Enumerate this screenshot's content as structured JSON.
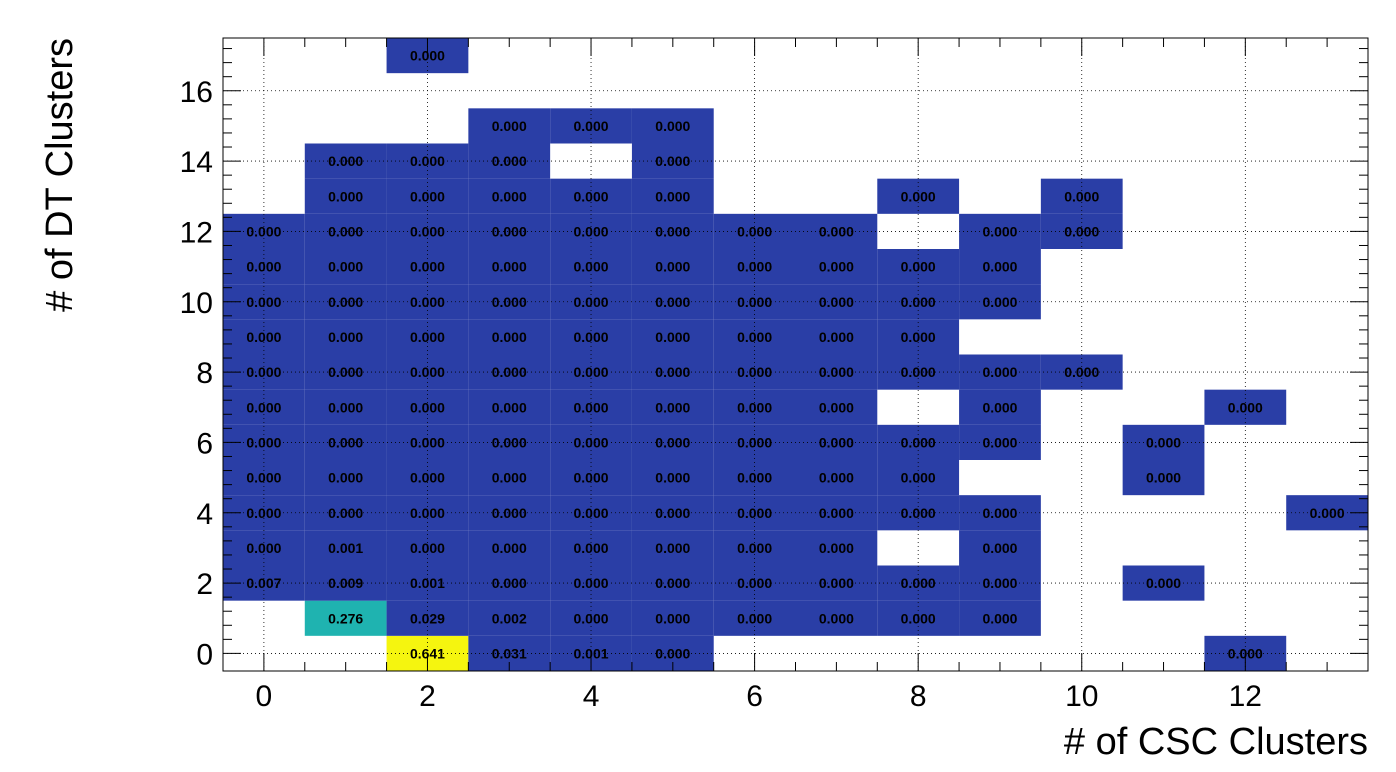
{
  "chart_data": {
    "type": "heatmap",
    "title": "",
    "xlabel": "# of CSC Clusters",
    "ylabel": "# of DT Clusters",
    "xlim": [
      -0.5,
      13.5
    ],
    "ylim": [
      -0.5,
      17.5
    ],
    "x_ticks": [
      "0",
      "2",
      "4",
      "6",
      "8",
      "10",
      "12"
    ],
    "y_ticks": [
      "0",
      "2",
      "4",
      "6",
      "8",
      "10",
      "12",
      "14",
      "16"
    ],
    "grid": true,
    "colors": {
      "low": "#2a3ea6",
      "mid": "#1fb3b0",
      "high": "#f5f50f"
    },
    "cells": [
      {
        "x": 2,
        "y": 0,
        "label": "0.641",
        "value": 0.641
      },
      {
        "x": 3,
        "y": 0,
        "label": "0.031",
        "value": 0.031
      },
      {
        "x": 4,
        "y": 0,
        "label": "0.001",
        "value": 0.001
      },
      {
        "x": 5,
        "y": 0,
        "label": "0.000",
        "value": 0.0
      },
      {
        "x": 12,
        "y": 0,
        "label": "0.000",
        "value": 0.0
      },
      {
        "x": 1,
        "y": 1,
        "label": "0.276",
        "value": 0.276
      },
      {
        "x": 2,
        "y": 1,
        "label": "0.029",
        "value": 0.029
      },
      {
        "x": 3,
        "y": 1,
        "label": "0.002",
        "value": 0.002
      },
      {
        "x": 4,
        "y": 1,
        "label": "0.000",
        "value": 0.0
      },
      {
        "x": 5,
        "y": 1,
        "label": "0.000",
        "value": 0.0
      },
      {
        "x": 6,
        "y": 1,
        "label": "0.000",
        "value": 0.0
      },
      {
        "x": 7,
        "y": 1,
        "label": "0.000",
        "value": 0.0
      },
      {
        "x": 8,
        "y": 1,
        "label": "0.000",
        "value": 0.0
      },
      {
        "x": 9,
        "y": 1,
        "label": "0.000",
        "value": 0.0
      },
      {
        "x": 0,
        "y": 2,
        "label": "0.007",
        "value": 0.007
      },
      {
        "x": 1,
        "y": 2,
        "label": "0.009",
        "value": 0.009
      },
      {
        "x": 2,
        "y": 2,
        "label": "0.001",
        "value": 0.001
      },
      {
        "x": 3,
        "y": 2,
        "label": "0.000",
        "value": 0.0
      },
      {
        "x": 4,
        "y": 2,
        "label": "0.000",
        "value": 0.0
      },
      {
        "x": 5,
        "y": 2,
        "label": "0.000",
        "value": 0.0
      },
      {
        "x": 6,
        "y": 2,
        "label": "0.000",
        "value": 0.0
      },
      {
        "x": 7,
        "y": 2,
        "label": "0.000",
        "value": 0.0
      },
      {
        "x": 8,
        "y": 2,
        "label": "0.000",
        "value": 0.0
      },
      {
        "x": 9,
        "y": 2,
        "label": "0.000",
        "value": 0.0
      },
      {
        "x": 11,
        "y": 2,
        "label": "0.000",
        "value": 0.0
      },
      {
        "x": 0,
        "y": 3,
        "label": "0.000",
        "value": 0.0
      },
      {
        "x": 1,
        "y": 3,
        "label": "0.001",
        "value": 0.001
      },
      {
        "x": 2,
        "y": 3,
        "label": "0.000",
        "value": 0.0
      },
      {
        "x": 3,
        "y": 3,
        "label": "0.000",
        "value": 0.0
      },
      {
        "x": 4,
        "y": 3,
        "label": "0.000",
        "value": 0.0
      },
      {
        "x": 5,
        "y": 3,
        "label": "0.000",
        "value": 0.0
      },
      {
        "x": 6,
        "y": 3,
        "label": "0.000",
        "value": 0.0
      },
      {
        "x": 7,
        "y": 3,
        "label": "0.000",
        "value": 0.0
      },
      {
        "x": 9,
        "y": 3,
        "label": "0.000",
        "value": 0.0
      },
      {
        "x": 0,
        "y": 4,
        "label": "0.000",
        "value": 0.0
      },
      {
        "x": 1,
        "y": 4,
        "label": "0.000",
        "value": 0.0
      },
      {
        "x": 2,
        "y": 4,
        "label": "0.000",
        "value": 0.0
      },
      {
        "x": 3,
        "y": 4,
        "label": "0.000",
        "value": 0.0
      },
      {
        "x": 4,
        "y": 4,
        "label": "0.000",
        "value": 0.0
      },
      {
        "x": 5,
        "y": 4,
        "label": "0.000",
        "value": 0.0
      },
      {
        "x": 6,
        "y": 4,
        "label": "0.000",
        "value": 0.0
      },
      {
        "x": 7,
        "y": 4,
        "label": "0.000",
        "value": 0.0
      },
      {
        "x": 8,
        "y": 4,
        "label": "0.000",
        "value": 0.0
      },
      {
        "x": 9,
        "y": 4,
        "label": "0.000",
        "value": 0.0
      },
      {
        "x": 13,
        "y": 4,
        "label": "0.000",
        "value": 0.0
      },
      {
        "x": 0,
        "y": 5,
        "label": "0.000",
        "value": 0.0
      },
      {
        "x": 1,
        "y": 5,
        "label": "0.000",
        "value": 0.0
      },
      {
        "x": 2,
        "y": 5,
        "label": "0.000",
        "value": 0.0
      },
      {
        "x": 3,
        "y": 5,
        "label": "0.000",
        "value": 0.0
      },
      {
        "x": 4,
        "y": 5,
        "label": "0.000",
        "value": 0.0
      },
      {
        "x": 5,
        "y": 5,
        "label": "0.000",
        "value": 0.0
      },
      {
        "x": 6,
        "y": 5,
        "label": "0.000",
        "value": 0.0
      },
      {
        "x": 7,
        "y": 5,
        "label": "0.000",
        "value": 0.0
      },
      {
        "x": 8,
        "y": 5,
        "label": "0.000",
        "value": 0.0
      },
      {
        "x": 11,
        "y": 5,
        "label": "0.000",
        "value": 0.0
      },
      {
        "x": 0,
        "y": 6,
        "label": "0.000",
        "value": 0.0
      },
      {
        "x": 1,
        "y": 6,
        "label": "0.000",
        "value": 0.0
      },
      {
        "x": 2,
        "y": 6,
        "label": "0.000",
        "value": 0.0
      },
      {
        "x": 3,
        "y": 6,
        "label": "0.000",
        "value": 0.0
      },
      {
        "x": 4,
        "y": 6,
        "label": "0.000",
        "value": 0.0
      },
      {
        "x": 5,
        "y": 6,
        "label": "0.000",
        "value": 0.0
      },
      {
        "x": 6,
        "y": 6,
        "label": "0.000",
        "value": 0.0
      },
      {
        "x": 7,
        "y": 6,
        "label": "0.000",
        "value": 0.0
      },
      {
        "x": 8,
        "y": 6,
        "label": "0.000",
        "value": 0.0
      },
      {
        "x": 9,
        "y": 6,
        "label": "0.000",
        "value": 0.0
      },
      {
        "x": 11,
        "y": 6,
        "label": "0.000",
        "value": 0.0
      },
      {
        "x": 0,
        "y": 7,
        "label": "0.000",
        "value": 0.0
      },
      {
        "x": 1,
        "y": 7,
        "label": "0.000",
        "value": 0.0
      },
      {
        "x": 2,
        "y": 7,
        "label": "0.000",
        "value": 0.0
      },
      {
        "x": 3,
        "y": 7,
        "label": "0.000",
        "value": 0.0
      },
      {
        "x": 4,
        "y": 7,
        "label": "0.000",
        "value": 0.0
      },
      {
        "x": 5,
        "y": 7,
        "label": "0.000",
        "value": 0.0
      },
      {
        "x": 6,
        "y": 7,
        "label": "0.000",
        "value": 0.0
      },
      {
        "x": 7,
        "y": 7,
        "label": "0.000",
        "value": 0.0
      },
      {
        "x": 9,
        "y": 7,
        "label": "0.000",
        "value": 0.0
      },
      {
        "x": 12,
        "y": 7,
        "label": "0.000",
        "value": 0.0
      },
      {
        "x": 0,
        "y": 8,
        "label": "0.000",
        "value": 0.0
      },
      {
        "x": 1,
        "y": 8,
        "label": "0.000",
        "value": 0.0
      },
      {
        "x": 2,
        "y": 8,
        "label": "0.000",
        "value": 0.0
      },
      {
        "x": 3,
        "y": 8,
        "label": "0.000",
        "value": 0.0
      },
      {
        "x": 4,
        "y": 8,
        "label": "0.000",
        "value": 0.0
      },
      {
        "x": 5,
        "y": 8,
        "label": "0.000",
        "value": 0.0
      },
      {
        "x": 6,
        "y": 8,
        "label": "0.000",
        "value": 0.0
      },
      {
        "x": 7,
        "y": 8,
        "label": "0.000",
        "value": 0.0
      },
      {
        "x": 8,
        "y": 8,
        "label": "0.000",
        "value": 0.0
      },
      {
        "x": 9,
        "y": 8,
        "label": "0.000",
        "value": 0.0
      },
      {
        "x": 10,
        "y": 8,
        "label": "0.000",
        "value": 0.0
      },
      {
        "x": 0,
        "y": 9,
        "label": "0.000",
        "value": 0.0
      },
      {
        "x": 1,
        "y": 9,
        "label": "0.000",
        "value": 0.0
      },
      {
        "x": 2,
        "y": 9,
        "label": "0.000",
        "value": 0.0
      },
      {
        "x": 3,
        "y": 9,
        "label": "0.000",
        "value": 0.0
      },
      {
        "x": 4,
        "y": 9,
        "label": "0.000",
        "value": 0.0
      },
      {
        "x": 5,
        "y": 9,
        "label": "0.000",
        "value": 0.0
      },
      {
        "x": 6,
        "y": 9,
        "label": "0.000",
        "value": 0.0
      },
      {
        "x": 7,
        "y": 9,
        "label": "0.000",
        "value": 0.0
      },
      {
        "x": 8,
        "y": 9,
        "label": "0.000",
        "value": 0.0
      },
      {
        "x": 0,
        "y": 10,
        "label": "0.000",
        "value": 0.0
      },
      {
        "x": 1,
        "y": 10,
        "label": "0.000",
        "value": 0.0
      },
      {
        "x": 2,
        "y": 10,
        "label": "0.000",
        "value": 0.0
      },
      {
        "x": 3,
        "y": 10,
        "label": "0.000",
        "value": 0.0
      },
      {
        "x": 4,
        "y": 10,
        "label": "0.000",
        "value": 0.0
      },
      {
        "x": 5,
        "y": 10,
        "label": "0.000",
        "value": 0.0
      },
      {
        "x": 6,
        "y": 10,
        "label": "0.000",
        "value": 0.0
      },
      {
        "x": 7,
        "y": 10,
        "label": "0.000",
        "value": 0.0
      },
      {
        "x": 8,
        "y": 10,
        "label": "0.000",
        "value": 0.0
      },
      {
        "x": 9,
        "y": 10,
        "label": "0.000",
        "value": 0.0
      },
      {
        "x": 0,
        "y": 11,
        "label": "0.000",
        "value": 0.0
      },
      {
        "x": 1,
        "y": 11,
        "label": "0.000",
        "value": 0.0
      },
      {
        "x": 2,
        "y": 11,
        "label": "0.000",
        "value": 0.0
      },
      {
        "x": 3,
        "y": 11,
        "label": "0.000",
        "value": 0.0
      },
      {
        "x": 4,
        "y": 11,
        "label": "0.000",
        "value": 0.0
      },
      {
        "x": 5,
        "y": 11,
        "label": "0.000",
        "value": 0.0
      },
      {
        "x": 6,
        "y": 11,
        "label": "0.000",
        "value": 0.0
      },
      {
        "x": 7,
        "y": 11,
        "label": "0.000",
        "value": 0.0
      },
      {
        "x": 8,
        "y": 11,
        "label": "0.000",
        "value": 0.0
      },
      {
        "x": 9,
        "y": 11,
        "label": "0.000",
        "value": 0.0
      },
      {
        "x": 0,
        "y": 12,
        "label": "0.000",
        "value": 0.0
      },
      {
        "x": 1,
        "y": 12,
        "label": "0.000",
        "value": 0.0
      },
      {
        "x": 2,
        "y": 12,
        "label": "0.000",
        "value": 0.0
      },
      {
        "x": 3,
        "y": 12,
        "label": "0.000",
        "value": 0.0
      },
      {
        "x": 4,
        "y": 12,
        "label": "0.000",
        "value": 0.0
      },
      {
        "x": 5,
        "y": 12,
        "label": "0.000",
        "value": 0.0
      },
      {
        "x": 6,
        "y": 12,
        "label": "0.000",
        "value": 0.0
      },
      {
        "x": 7,
        "y": 12,
        "label": "0.000",
        "value": 0.0
      },
      {
        "x": 9,
        "y": 12,
        "label": "0.000",
        "value": 0.0
      },
      {
        "x": 10,
        "y": 12,
        "label": "0.000",
        "value": 0.0
      },
      {
        "x": 1,
        "y": 13,
        "label": "0.000",
        "value": 0.0
      },
      {
        "x": 2,
        "y": 13,
        "label": "0.000",
        "value": 0.0
      },
      {
        "x": 3,
        "y": 13,
        "label": "0.000",
        "value": 0.0
      },
      {
        "x": 4,
        "y": 13,
        "label": "0.000",
        "value": 0.0
      },
      {
        "x": 5,
        "y": 13,
        "label": "0.000",
        "value": 0.0
      },
      {
        "x": 8,
        "y": 13,
        "label": "0.000",
        "value": 0.0
      },
      {
        "x": 10,
        "y": 13,
        "label": "0.000",
        "value": 0.0
      },
      {
        "x": 1,
        "y": 14,
        "label": "0.000",
        "value": 0.0
      },
      {
        "x": 2,
        "y": 14,
        "label": "0.000",
        "value": 0.0
      },
      {
        "x": 3,
        "y": 14,
        "label": "0.000",
        "value": 0.0
      },
      {
        "x": 5,
        "y": 14,
        "label": "0.000",
        "value": 0.0
      },
      {
        "x": 3,
        "y": 15,
        "label": "0.000",
        "value": 0.0
      },
      {
        "x": 4,
        "y": 15,
        "label": "0.000",
        "value": 0.0
      },
      {
        "x": 5,
        "y": 15,
        "label": "0.000",
        "value": 0.0
      },
      {
        "x": 2,
        "y": 17,
        "label": "0.000",
        "value": 0.0
      }
    ]
  }
}
